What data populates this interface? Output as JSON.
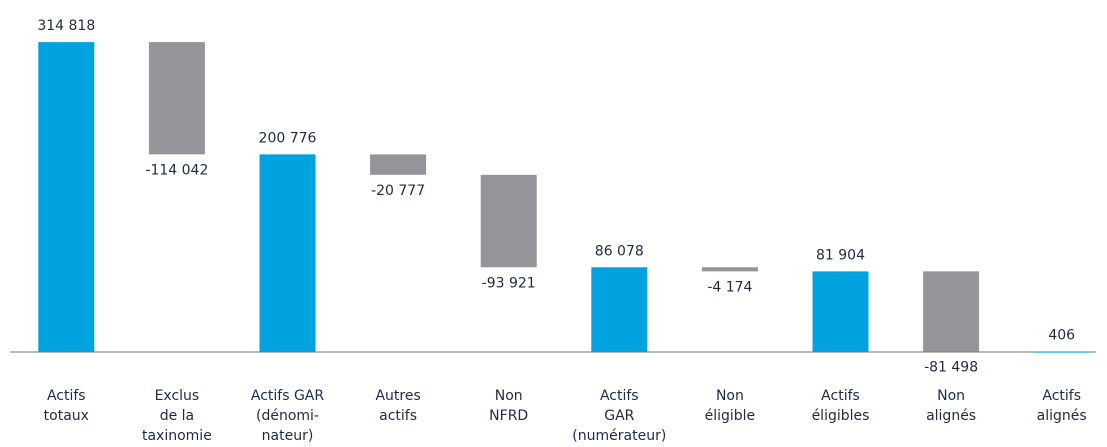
{
  "chart_data": {
    "type": "waterfall",
    "categories": [
      [
        "Actifs",
        "totaux"
      ],
      [
        "Exclus",
        "de la",
        "taxinomie"
      ],
      [
        "Actifs GAR",
        "(dénomi-",
        "nateur)"
      ],
      [
        "Autres",
        "actifs"
      ],
      [
        "Non",
        "NFRD"
      ],
      [
        "Actifs",
        "GAR",
        "(numérateur)"
      ],
      [
        "Non",
        "éligible"
      ],
      [
        "Actifs",
        "éligibles"
      ],
      [
        "Non",
        "alignés"
      ],
      [
        "Actifs",
        "alignés"
      ]
    ],
    "measure": [
      "absolute",
      "relative",
      "absolute",
      "relative",
      "relative",
      "absolute",
      "relative",
      "absolute",
      "relative",
      "absolute"
    ],
    "values": [
      314818,
      -114042,
      200776,
      -20777,
      -93921,
      86078,
      -4174,
      81904,
      -81498,
      406
    ],
    "value_labels": [
      "314 818",
      "-114 042",
      "200 776",
      "-20 777",
      "-93 921",
      "86 078",
      "-4 174",
      "81 904",
      "-81 498",
      "406"
    ],
    "colors": {
      "absolute": "#00a3e0",
      "relative": "#939598"
    },
    "ylim": [
      0,
      320000
    ]
  }
}
